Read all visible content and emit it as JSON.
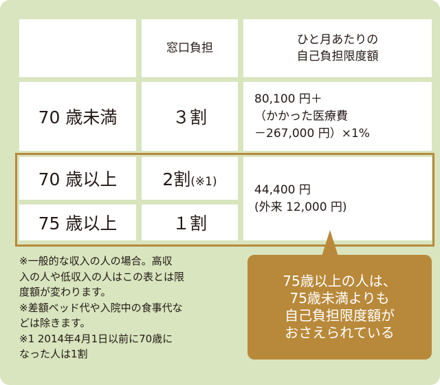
{
  "header": {
    "col2": "窓口負担",
    "col3": [
      "ひと月あたりの",
      "自己負担限度額"
    ]
  },
  "rows": [
    {
      "label": "70 歳未満",
      "rate": "３割",
      "limit": [
        "80,100 円＋",
        "（かかった医療費",
        "－267,000 円）×1%"
      ]
    },
    {
      "label": "70 歳以上",
      "rate": "2割",
      "rate_note": "(※1)"
    },
    {
      "label": "75 歳以上",
      "rate": "１割"
    }
  ],
  "shared_limit": [
    "44,400 円",
    "(外来 12,000 円)"
  ],
  "notes": [
    "※一般的な収入の人の場合。高収",
    "入の人や低収入の人はこの表とは限",
    "度額が変わります。",
    "※差額ベッド代や入院中の食事代な",
    "どは除きます。",
    "※1 2014年4月1日以前に70歳に",
    "なった人は1割"
  ],
  "callout": [
    "75歳以上の人は、",
    "75歳未満よりも",
    "自己負担限度額が",
    "おさえられている"
  ]
}
